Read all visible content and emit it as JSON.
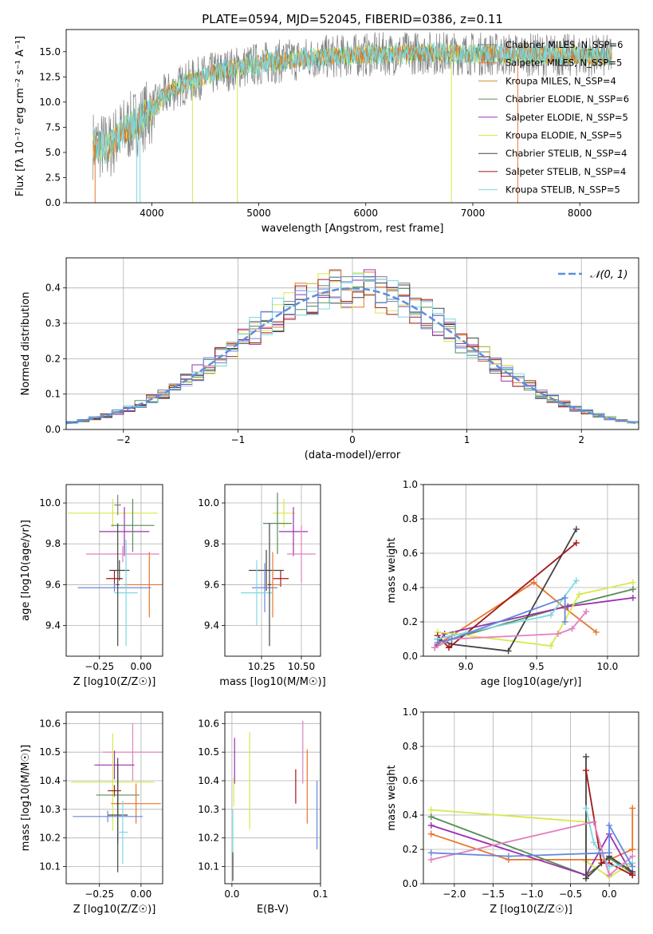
{
  "title": "PLATE=0594, MJD=52045, FIBERID=0386, z=0.11",
  "colors": {
    "Chabrier MILES": "#808080",
    "Salpeter MILES": "#e8762b",
    "Kroupa MILES": "#d98a2a",
    "Chabrier ELODIE": "#5a8a5a",
    "Salpeter ELODIE": "#9b30b0",
    "Kroupa ELODIE": "#d8e84a",
    "Chabrier STELIB": "#444444",
    "Salpeter STELIB": "#a01818",
    "Kroupa STELIB": "#7dd8e0",
    "Normal": "#5b8ee0",
    "pink": "#e080c0",
    "blue": "#6688dd"
  },
  "chart_data": [
    {
      "type": "line",
      "panel": "spectrum",
      "xlabel": "wavelength [Angstrom, rest frame]",
      "ylabel": "Flux [fλ 10⁻¹⁷ erg cm⁻² s⁻¹ A⁻¹]",
      "xlim": [
        3200,
        8550
      ],
      "ylim": [
        0,
        17.2
      ],
      "xticks": [
        4000,
        5000,
        6000,
        7000,
        8000
      ],
      "yticks": [
        0.0,
        2.5,
        5.0,
        7.5,
        10.0,
        12.5,
        15.0
      ],
      "legend_loc": "upper right",
      "legend": [
        "Chabrier MILES, N_SSP=6",
        "Salpeter MILES, N_SSP=5",
        "Kroupa MILES, N_SSP=4",
        "Chabrier ELODIE, N_SSP=6",
        "Salpeter ELODIE, N_SSP=5",
        "Kroupa ELODIE, N_SSP=5",
        "Chabrier STELIB, N_SSP=4",
        "Salpeter STELIB, N_SSP=4",
        "Kroupa STELIB, N_SSP=5"
      ],
      "continuum": {
        "x": [
          3450,
          3600,
          3700,
          3800,
          3900,
          4000,
          4100,
          4200,
          4300,
          4400,
          4500,
          4700,
          5000,
          5500,
          6000,
          6500,
          7000,
          7500,
          8000,
          8300
        ],
        "y": [
          5.8,
          5.5,
          6.8,
          7.6,
          8.3,
          9.2,
          10.4,
          11.2,
          11.8,
          12.2,
          12.6,
          13.2,
          13.8,
          14.4,
          14.7,
          14.9,
          14.8,
          14.7,
          14.6,
          14.5
        ]
      }
    },
    {
      "type": "bar",
      "panel": "residual_histogram",
      "xlabel": "(data-model)/error",
      "ylabel": "Normed distribution",
      "xlim": [
        -2.5,
        2.5
      ],
      "ylim": [
        0,
        0.485
      ],
      "xticks": [
        -2,
        -1,
        0,
        1,
        2
      ],
      "yticks": [
        0.0,
        0.1,
        0.2,
        0.3,
        0.4
      ],
      "grid": true,
      "legend": [
        "𝒩(0, 1)"
      ],
      "legend_loc": "upper right",
      "bin_width": 0.1,
      "bin_start": -2.5
    },
    {
      "type": "scatter",
      "panel": "age_vs_Z",
      "xlabel": "Z [log10(Z/Z☉)]",
      "ylabel": "age [log10(age/yr)]",
      "xlim": [
        -0.45,
        0.13
      ],
      "ylim": [
        9.25,
        10.09
      ],
      "xticks": [
        -0.25,
        0.0
      ],
      "yticks": [
        9.4,
        9.6,
        9.8,
        10.0
      ],
      "grid": true,
      "points": [
        {
          "x": -0.17,
          "y": 9.95,
          "xerr": 0.27,
          "yerr": 0.07,
          "color": "Kroupa ELODIE"
        },
        {
          "x": -0.1,
          "y": 9.86,
          "xerr": 0.15,
          "yerr": 0.12,
          "color": "Salpeter ELODIE"
        },
        {
          "x": -0.05,
          "y": 9.89,
          "xerr": 0.13,
          "yerr": 0.13,
          "color": "Chabrier ELODIE"
        },
        {
          "x": -0.14,
          "y": 9.99,
          "xerr": 0.02,
          "yerr": 0.05,
          "color": "Chabrier MILES"
        },
        {
          "x": -0.11,
          "y": 9.75,
          "xerr": 0.22,
          "yerr": 0.04,
          "color": "pink"
        },
        {
          "x": -0.13,
          "y": 9.67,
          "xerr": 0.06,
          "yerr": 0.05,
          "color": "Chabrier STELIB"
        },
        {
          "x": -0.16,
          "y": 9.63,
          "xerr": 0.05,
          "yerr": 0.04,
          "color": "Salpeter STELIB"
        },
        {
          "x": 0.05,
          "y": 9.6,
          "xerr": 0.15,
          "yerr": 0.16,
          "color": "Salpeter MILES"
        },
        {
          "x": -0.16,
          "y": 9.585,
          "xerr": 0.22,
          "yerr": 0.02,
          "color": "blue"
        },
        {
          "x": -0.09,
          "y": 9.56,
          "xerr": 0.07,
          "yerr": 0.26,
          "color": "Kroupa STELIB"
        },
        {
          "x": -0.14,
          "y": 9.6,
          "xerr": 0.01,
          "yerr": 0.3,
          "color": "Chabrier STELIB"
        }
      ]
    },
    {
      "type": "scatter",
      "panel": "age_vs_mass",
      "xlabel": "mass [log10(M/M☉)]",
      "ylabel": "",
      "xlim": [
        10.02,
        10.62
      ],
      "ylim": [
        9.25,
        10.09
      ],
      "xticks": [
        10.25,
        10.5
      ],
      "yticks": [
        9.4,
        9.6,
        9.8,
        10.0
      ],
      "grid": true,
      "points": [
        {
          "x": 10.39,
          "y": 9.95,
          "xerr": 0.07,
          "yerr": 0.07,
          "color": "Kroupa ELODIE"
        },
        {
          "x": 10.45,
          "y": 9.86,
          "xerr": 0.09,
          "yerr": 0.12,
          "color": "Salpeter ELODIE"
        },
        {
          "x": 10.35,
          "y": 9.9,
          "xerr": 0.09,
          "yerr": 0.15,
          "color": "Chabrier ELODIE"
        },
        {
          "x": 10.5,
          "y": 9.75,
          "xerr": 0.09,
          "yerr": 0.14,
          "color": "pink"
        },
        {
          "x": 10.28,
          "y": 9.67,
          "xerr": 0.11,
          "yerr": 0.1,
          "color": "Chabrier STELIB"
        },
        {
          "x": 10.37,
          "y": 9.63,
          "xerr": 0.05,
          "yerr": 0.04,
          "color": "Salpeter STELIB"
        },
        {
          "x": 10.32,
          "y": 9.6,
          "xerr": 0.05,
          "yerr": 0.16,
          "color": "Salpeter MILES"
        },
        {
          "x": 10.27,
          "y": 9.585,
          "xerr": 0.08,
          "yerr": 0.12,
          "color": "blue"
        },
        {
          "x": 10.22,
          "y": 9.56,
          "xerr": 0.1,
          "yerr": 0.16,
          "color": "Kroupa STELIB"
        },
        {
          "x": 10.3,
          "y": 9.6,
          "xerr": 0.01,
          "yerr": 0.3,
          "color": "Chabrier STELIB"
        }
      ]
    },
    {
      "type": "line",
      "panel": "mass_weight_vs_age",
      "xlabel": "age [log10(age/yr)]",
      "ylabel": "mass weight",
      "xlim": [
        8.7,
        10.22
      ],
      "ylim": [
        0,
        1
      ],
      "xticks": [
        9.0,
        9.5,
        10.0
      ],
      "yticks": [
        0.0,
        0.2,
        0.4,
        0.6,
        0.8,
        1.0
      ],
      "grid": true,
      "series": [
        {
          "color": "Salpeter MILES",
          "x": [
            8.8,
            8.9,
            9.48,
            9.7,
            9.92
          ],
          "y": [
            0.07,
            0.12,
            0.43,
            0.28,
            0.14
          ]
        },
        {
          "color": "Chabrier ELODIE",
          "x": [
            8.78,
            8.9,
            9.7,
            10.18
          ],
          "y": [
            0.05,
            0.1,
            0.29,
            0.39
          ]
        },
        {
          "color": "Salpeter ELODIE",
          "x": [
            8.78,
            8.85,
            9.72,
            10.18
          ],
          "y": [
            0.05,
            0.13,
            0.29,
            0.34
          ]
        },
        {
          "color": "Kroupa ELODIE",
          "x": [
            8.8,
            8.92,
            9.6,
            9.8,
            10.18
          ],
          "y": [
            0.14,
            0.13,
            0.06,
            0.36,
            0.43
          ]
        },
        {
          "color": "Chabrier STELIB",
          "x": [
            8.8,
            8.9,
            9.3,
            9.78
          ],
          "y": [
            0.1,
            0.07,
            0.03,
            0.74
          ]
        },
        {
          "color": "Salpeter STELIB",
          "x": [
            8.8,
            8.88,
            9.78
          ],
          "y": [
            0.12,
            0.05,
            0.66
          ]
        },
        {
          "color": "Kroupa STELIB",
          "x": [
            8.8,
            8.9,
            9.6,
            9.78
          ],
          "y": [
            0.1,
            0.12,
            0.24,
            0.44
          ]
        },
        {
          "color": "pink",
          "x": [
            8.78,
            8.9,
            9.65,
            9.75,
            9.85
          ],
          "y": [
            0.05,
            0.1,
            0.13,
            0.16,
            0.26
          ]
        },
        {
          "color": "blue",
          "x": [
            8.8,
            8.9,
            9.7,
            9.7
          ],
          "y": [
            0.08,
            0.1,
            0.34,
            0.2
          ]
        }
      ]
    },
    {
      "type": "scatter",
      "panel": "mass_vs_Z",
      "xlabel": "Z [log10(Z/Z☉)]",
      "ylabel": "mass [log10(M/M☉)]",
      "xlim": [
        -0.45,
        0.13
      ],
      "ylim": [
        10.04,
        10.64
      ],
      "xticks": [
        -0.25,
        0.0
      ],
      "yticks": [
        10.1,
        10.2,
        10.3,
        10.4,
        10.5,
        10.6
      ],
      "grid": true,
      "points": [
        {
          "x": -0.05,
          "y": 10.5,
          "xerr": 0.18,
          "yerr": 0.1,
          "color": "pink"
        },
        {
          "x": -0.16,
          "y": 10.455,
          "xerr": 0.12,
          "yerr": 0.05,
          "color": "Salpeter ELODIE"
        },
        {
          "x": -0.17,
          "y": 10.395,
          "xerr": 0.25,
          "yerr": 0.17,
          "color": "Kroupa ELODIE"
        },
        {
          "x": -0.16,
          "y": 10.365,
          "xerr": 0.04,
          "yerr": 0.02,
          "color": "Salpeter STELIB"
        },
        {
          "x": -0.14,
          "y": 10.35,
          "xerr": 0.13,
          "yerr": 0.08,
          "color": "Chabrier ELODIE"
        },
        {
          "x": -0.14,
          "y": 10.32,
          "xerr": 0.01,
          "yerr": 0.14,
          "color": "Chabrier STELIB"
        },
        {
          "x": -0.03,
          "y": 10.32,
          "xerr": 0.15,
          "yerr": 0.07,
          "color": "Salpeter MILES"
        },
        {
          "x": -0.14,
          "y": 10.28,
          "xerr": 0.06,
          "yerr": 0.2,
          "color": "Chabrier STELIB"
        },
        {
          "x": -0.2,
          "y": 10.275,
          "xerr": 0.21,
          "yerr": 0.02,
          "color": "blue"
        },
        {
          "x": -0.11,
          "y": 10.22,
          "xerr": 0.03,
          "yerr": 0.11,
          "color": "Kroupa STELIB"
        }
      ]
    },
    {
      "type": "scatter",
      "panel": "mass_vs_EBV",
      "xlabel": "E(B-V)",
      "ylabel": "",
      "xlim": [
        -0.008,
        0.1
      ],
      "ylim": [
        10.04,
        10.64
      ],
      "xticks": [
        0.0,
        0.1
      ],
      "yticks": [
        10.1,
        10.2,
        10.3,
        10.4,
        10.5,
        10.6
      ],
      "grid": true,
      "points": [
        {
          "x": 0.003,
          "y": 10.47,
          "xerr": 0,
          "yerr": 0.08,
          "color": "Salpeter ELODIE"
        },
        {
          "x": 0.02,
          "y": 10.4,
          "xerr": 0,
          "yerr": 0.17,
          "color": "Kroupa ELODIE"
        },
        {
          "x": 0.002,
          "y": 10.36,
          "xerr": 0,
          "yerr": 0.05,
          "color": "Kroupa ELODIE"
        },
        {
          "x": 0.001,
          "y": 10.2,
          "xerr": 0,
          "yerr": 0.1,
          "color": "Kroupa STELIB"
        },
        {
          "x": 0.001,
          "y": 10.1,
          "xerr": 0,
          "yerr": 0.05,
          "color": "Chabrier STELIB"
        },
        {
          "x": 0.072,
          "y": 10.38,
          "xerr": 0,
          "yerr": 0.06,
          "color": "Salpeter STELIB"
        },
        {
          "x": 0.08,
          "y": 10.5,
          "xerr": 0,
          "yerr": 0.11,
          "color": "pink"
        },
        {
          "x": 0.085,
          "y": 10.38,
          "xerr": 0,
          "yerr": 0.13,
          "color": "Salpeter MILES"
        },
        {
          "x": 0.096,
          "y": 10.28,
          "xerr": 0,
          "yerr": 0.12,
          "color": "blue"
        }
      ]
    },
    {
      "type": "line",
      "panel": "mass_weight_vs_Z",
      "xlabel": "Z [log10(Z/Z☉)]",
      "ylabel": "mass weight",
      "xlim": [
        -2.4,
        0.38
      ],
      "ylim": [
        0,
        1
      ],
      "xticks": [
        -2.0,
        -1.5,
        -1.0,
        -0.5,
        0.0
      ],
      "yticks": [
        0.0,
        0.2,
        0.4,
        0.6,
        0.8,
        1.0
      ],
      "grid": true,
      "series": [
        {
          "color": "Salpeter MILES",
          "x": [
            -2.3,
            -1.3,
            0.0,
            0.3,
            0.3
          ],
          "y": [
            0.29,
            0.14,
            0.14,
            0.2,
            0.44
          ]
        },
        {
          "color": "Chabrier ELODIE",
          "x": [
            -2.3,
            -0.3,
            0.0,
            0.3
          ],
          "y": [
            0.39,
            0.05,
            0.15,
            0.06
          ]
        },
        {
          "color": "Salpeter ELODIE",
          "x": [
            -2.3,
            -0.3,
            0.0,
            0.3
          ],
          "y": [
            0.34,
            0.05,
            0.29,
            0.05
          ]
        },
        {
          "color": "Kroupa ELODIE",
          "x": [
            -2.3,
            -0.3,
            -0.3,
            0.0,
            0.3
          ],
          "y": [
            0.43,
            0.36,
            0.13,
            0.04,
            0.12
          ]
        },
        {
          "color": "Chabrier STELIB",
          "x": [
            -0.3,
            -0.3,
            0.0,
            0.3
          ],
          "y": [
            0.74,
            0.03,
            0.16,
            0.07
          ]
        },
        {
          "color": "Salpeter STELIB",
          "x": [
            -0.3,
            -0.1,
            0.0,
            0.3
          ],
          "y": [
            0.66,
            0.12,
            0.12,
            0.05
          ]
        },
        {
          "color": "Kroupa STELIB",
          "x": [
            -0.3,
            -0.2,
            0.0,
            0.3
          ],
          "y": [
            0.44,
            0.24,
            0.1,
            0.12
          ]
        },
        {
          "color": "pink",
          "x": [
            -2.3,
            -0.2,
            0.0,
            0.3
          ],
          "y": [
            0.14,
            0.36,
            0.05,
            0.16
          ]
        },
        {
          "color": "blue",
          "x": [
            -2.3,
            -1.3,
            0.0,
            0.0,
            0.3
          ],
          "y": [
            0.18,
            0.16,
            0.18,
            0.34,
            0.1
          ]
        }
      ]
    }
  ]
}
